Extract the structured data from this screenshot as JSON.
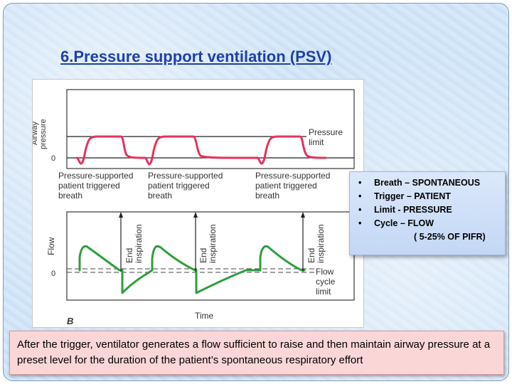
{
  "slide": {
    "title": "6.Pressure support ventilation (PSV)"
  },
  "figure": {
    "top_panel": {
      "ylabel_line1": "Airway",
      "ylabel_line2": "pressure",
      "zero_label": "0",
      "limit_line1": "Pressure",
      "limit_line2": "limit",
      "breath_label_line1": "Pressure-supported",
      "breath_label_line2": "patient triggered",
      "breath_label_line3": "breath"
    },
    "bottom_panel": {
      "ylabel": "Flow",
      "zero_label": "0",
      "end_insp_line1": "End",
      "end_insp_line2": "inspiration",
      "cycle_line1": "Flow",
      "cycle_line2": "cycle",
      "cycle_line3": "limit",
      "xlabel": "Time",
      "panel_letter": "B"
    },
    "pressure_color": "#e8305c",
    "flow_color": "#2e9e3e"
  },
  "bullets": {
    "items": [
      "Breath – SPONTANEOUS",
      "Trigger – PATIENT",
      "Limit - PRESSURE",
      "Cycle – FLOW"
    ],
    "sub_item": "( 5-25% OF PIFR)"
  },
  "note": {
    "text": "After the trigger, ventilator generates a flow sufficient to raise and then maintain airway pressure at a preset level for the duration of the patient’s spontaneous respiratory effort"
  }
}
